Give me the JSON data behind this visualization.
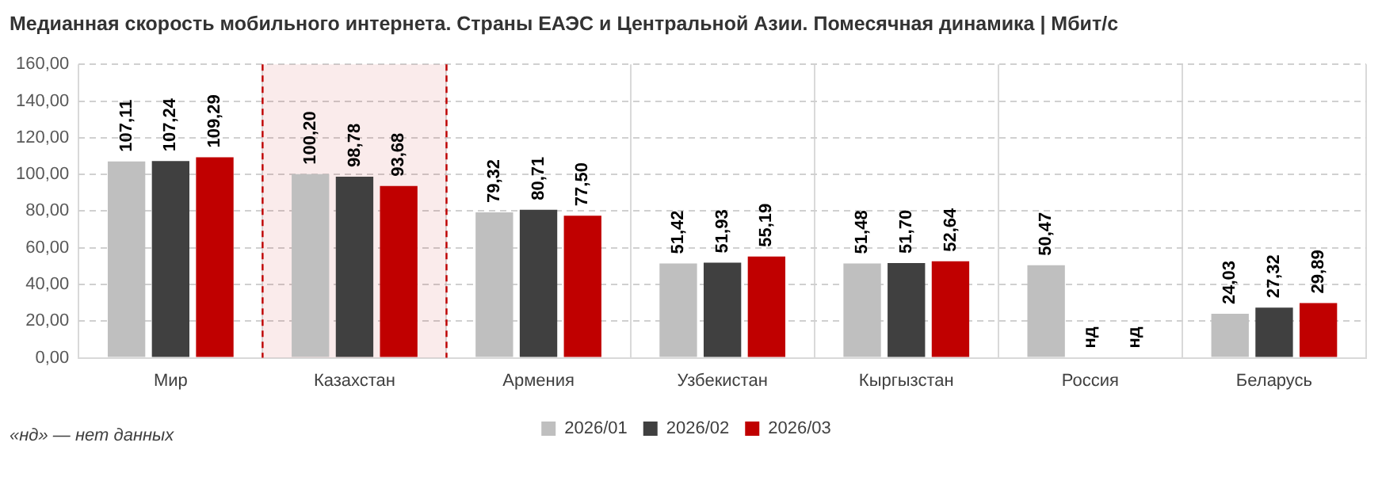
{
  "chart_data": {
    "type": "bar",
    "title": "Медианная скорость мобильного интернета. Страны ЕАЭС и Центральной Азии. Помесячная динамика | Мбит/с",
    "categories": [
      "Мир",
      "Казахстан",
      "Армения",
      "Узбекистан",
      "Кыргызстан",
      "Россия",
      "Беларусь"
    ],
    "series": [
      {
        "name": "2026/01",
        "color": "#bfbfbf",
        "values": [
          107.11,
          100.2,
          79.32,
          51.42,
          51.48,
          50.47,
          24.03
        ],
        "value_labels": [
          "107,11",
          "100,20",
          "79,32",
          "51,42",
          "51,48",
          "50,47",
          "24,03"
        ]
      },
      {
        "name": "2026/02",
        "color": "#404040",
        "values": [
          107.24,
          98.78,
          80.71,
          51.93,
          51.7,
          null,
          27.32
        ],
        "value_labels": [
          "107,24",
          "98,78",
          "80,71",
          "51,93",
          "51,70",
          "нд",
          "27,32"
        ]
      },
      {
        "name": "2026/03",
        "color": "#c00000",
        "values": [
          109.29,
          93.68,
          77.5,
          55.19,
          52.64,
          null,
          29.89
        ],
        "value_labels": [
          "109,29",
          "93,68",
          "77,50",
          "55,19",
          "52,64",
          "нд",
          "29,89"
        ]
      }
    ],
    "ylim": [
      0,
      160
    ],
    "yticks": [
      {
        "value": 0,
        "label": "0,00"
      },
      {
        "value": 20,
        "label": "20,00"
      },
      {
        "value": 40,
        "label": "40,00"
      },
      {
        "value": 60,
        "label": "60,00"
      },
      {
        "value": 80,
        "label": "80,00"
      },
      {
        "value": 100,
        "label": "100,00"
      },
      {
        "value": 120,
        "label": "120,00"
      },
      {
        "value": 140,
        "label": "140,00"
      },
      {
        "value": 160,
        "label": "160,00"
      }
    ],
    "grid": true,
    "legend": "bottom",
    "bands": [
      {
        "axis": "x",
        "from": "Казахстан",
        "to": "Казахстан",
        "color": "#c00000"
      }
    ],
    "annotations": [
      "«нд» — нет данных"
    ]
  }
}
